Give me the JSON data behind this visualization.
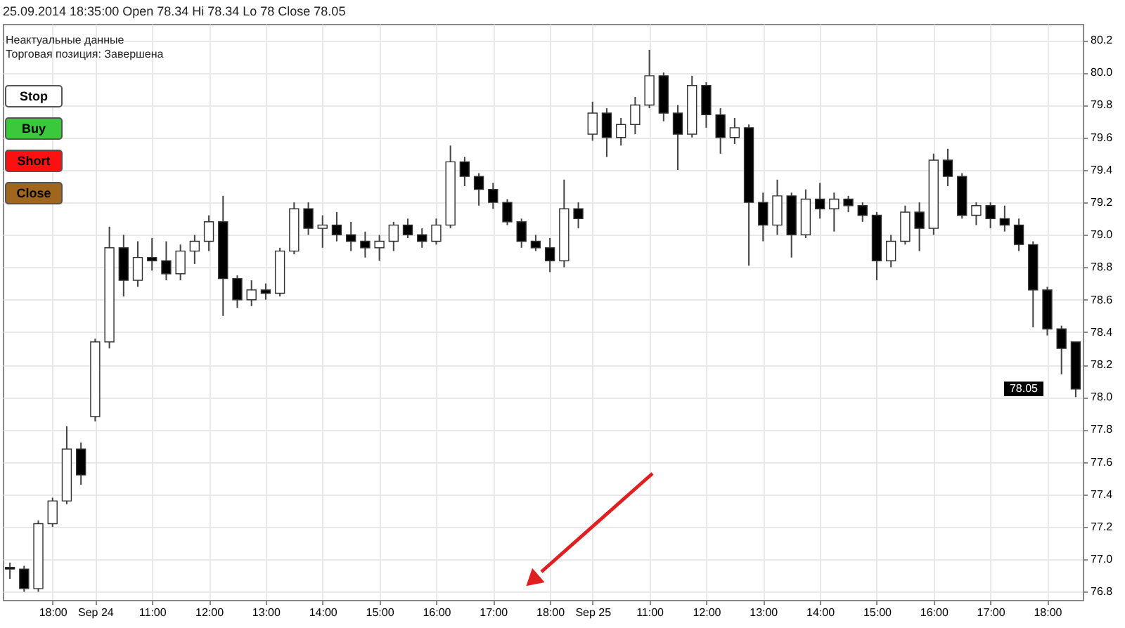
{
  "chart_data": {
    "type": "candlestick",
    "title": "25.09.2014 18:35:00 Open 78.34 Hi 78.34 Lo 78 Close 78.05",
    "annotations": [
      "Неактуальные данные",
      "Торговая позиция: Завершена",
      "Stop",
      "Buy",
      "Short",
      "Close",
      {
        "text": "78.05",
        "y": 78.05
      }
    ],
    "categories": [
      null,
      null,
      null,
      "18:00",
      null,
      null,
      "Sep 24",
      null,
      null,
      null,
      "11:00",
      null,
      null,
      null,
      "12:00",
      null,
      null,
      null,
      "13:00",
      null,
      null,
      null,
      "14:00",
      null,
      null,
      null,
      "15:00",
      null,
      null,
      null,
      "16:00",
      null,
      null,
      null,
      "17:00",
      null,
      null,
      null,
      "18:00",
      null,
      null,
      "Sep 25",
      null,
      null,
      null,
      "11:00",
      null,
      null,
      null,
      "12:00",
      null,
      null,
      null,
      "13:00",
      null,
      null,
      null,
      "14:00",
      null,
      null,
      null,
      "15:00",
      null,
      null,
      null,
      "16:00",
      null,
      null,
      null,
      "17:00",
      null,
      null,
      null,
      "18:00",
      null,
      null
    ],
    "ohlc": [
      [
        76.95,
        76.98,
        76.88,
        76.94
      ],
      [
        76.94,
        76.96,
        76.8,
        76.82
      ],
      [
        76.82,
        77.24,
        76.8,
        77.22
      ],
      [
        77.22,
        77.38,
        77.2,
        77.36
      ],
      [
        77.36,
        77.82,
        77.34,
        77.68
      ],
      [
        77.68,
        77.72,
        77.46,
        77.52
      ],
      [
        77.88,
        78.36,
        77.85,
        78.34
      ],
      [
        78.34,
        79.05,
        78.3,
        78.92
      ],
      [
        78.92,
        79.0,
        78.62,
        78.72
      ],
      [
        78.72,
        78.96,
        78.68,
        78.86
      ],
      [
        78.86,
        78.98,
        78.78,
        78.84
      ],
      [
        78.84,
        78.96,
        78.72,
        78.76
      ],
      [
        78.76,
        78.94,
        78.72,
        78.9
      ],
      [
        78.9,
        79.0,
        78.82,
        78.96
      ],
      [
        78.96,
        79.12,
        78.9,
        79.08
      ],
      [
        79.08,
        79.24,
        78.5,
        78.73
      ],
      [
        78.73,
        78.75,
        78.55,
        78.6
      ],
      [
        78.6,
        78.72,
        78.56,
        78.66
      ],
      [
        78.66,
        78.7,
        78.6,
        78.64
      ],
      [
        78.64,
        78.92,
        78.62,
        78.9
      ],
      [
        78.9,
        79.2,
        78.88,
        79.16
      ],
      [
        79.16,
        79.2,
        79.0,
        79.04
      ],
      [
        79.04,
        79.12,
        78.92,
        79.06
      ],
      [
        79.06,
        79.14,
        78.96,
        79.0
      ],
      [
        79.0,
        79.08,
        78.9,
        78.96
      ],
      [
        78.96,
        79.02,
        78.86,
        78.92
      ],
      [
        78.92,
        79.0,
        78.84,
        78.96
      ],
      [
        78.96,
        79.08,
        78.9,
        79.06
      ],
      [
        79.06,
        79.1,
        78.98,
        79.0
      ],
      [
        79.0,
        79.04,
        78.92,
        78.96
      ],
      [
        78.96,
        79.1,
        78.94,
        79.06
      ],
      [
        79.06,
        79.55,
        79.04,
        79.45
      ],
      [
        79.45,
        79.48,
        79.3,
        79.36
      ],
      [
        79.36,
        79.38,
        79.18,
        79.28
      ],
      [
        79.28,
        79.32,
        79.16,
        79.2
      ],
      [
        79.2,
        79.22,
        79.06,
        79.08
      ],
      [
        79.08,
        79.1,
        78.92,
        78.96
      ],
      [
        78.96,
        79.0,
        78.9,
        78.92
      ],
      [
        78.92,
        78.98,
        78.77,
        78.84
      ],
      [
        78.84,
        79.34,
        78.8,
        79.16
      ],
      [
        79.16,
        79.2,
        79.04,
        79.1
      ],
      [
        79.62,
        79.82,
        79.58,
        79.75
      ],
      [
        79.75,
        79.78,
        79.48,
        79.6
      ],
      [
        79.6,
        79.72,
        79.55,
        79.68
      ],
      [
        79.68,
        79.85,
        79.62,
        79.8
      ],
      [
        79.8,
        80.14,
        79.78,
        79.98
      ],
      [
        79.98,
        80.0,
        79.7,
        79.75
      ],
      [
        79.75,
        79.8,
        79.4,
        79.62
      ],
      [
        79.62,
        79.98,
        79.6,
        79.92
      ],
      [
        79.92,
        79.94,
        79.66,
        79.74
      ],
      [
        79.74,
        79.78,
        79.5,
        79.6
      ],
      [
        79.6,
        79.72,
        79.56,
        79.66
      ],
      [
        79.66,
        79.68,
        78.81,
        79.2
      ],
      [
        79.2,
        79.26,
        78.96,
        79.06
      ],
      [
        79.06,
        79.34,
        79.0,
        79.24
      ],
      [
        79.24,
        79.26,
        78.86,
        79.0
      ],
      [
        79.0,
        79.28,
        78.98,
        79.22
      ],
      [
        79.22,
        79.32,
        79.1,
        79.16
      ],
      [
        79.16,
        79.26,
        79.02,
        79.22
      ],
      [
        79.22,
        79.24,
        79.14,
        79.18
      ],
      [
        79.18,
        79.2,
        79.08,
        79.12
      ],
      [
        79.12,
        79.14,
        78.72,
        78.84
      ],
      [
        78.84,
        79.0,
        78.8,
        78.96
      ],
      [
        78.96,
        79.18,
        78.94,
        79.14
      ],
      [
        79.14,
        79.2,
        78.9,
        79.04
      ],
      [
        79.04,
        79.5,
        79.0,
        79.46
      ],
      [
        79.46,
        79.53,
        79.3,
        79.36
      ],
      [
        79.36,
        79.38,
        79.1,
        79.12
      ],
      [
        79.12,
        79.2,
        79.06,
        79.18
      ],
      [
        79.18,
        79.2,
        79.04,
        79.1
      ],
      [
        79.1,
        79.18,
        79.02,
        79.06
      ],
      [
        79.06,
        79.1,
        78.9,
        78.94
      ],
      [
        78.94,
        78.96,
        78.43,
        78.66
      ],
      [
        78.66,
        78.68,
        78.38,
        78.42
      ],
      [
        78.42,
        78.44,
        78.14,
        78.3
      ],
      [
        78.34,
        78.34,
        78.0,
        78.05
      ]
    ],
    "ylim": [
      76.75,
      80.3
    ],
    "yticks": [
      76.8,
      {
        "value": 77,
        "label": "77.0"
      },
      77.2,
      77.4,
      77.6,
      77.8,
      {
        "value": 78,
        "label": "78.0"
      },
      78.2,
      78.4,
      78.6,
      78.8,
      {
        "value": 79,
        "label": "79.0"
      },
      79.2,
      79.4,
      79.6,
      79.8,
      {
        "value": 80,
        "label": "80.0"
      },
      80.2
    ],
    "grid": true
  }
}
